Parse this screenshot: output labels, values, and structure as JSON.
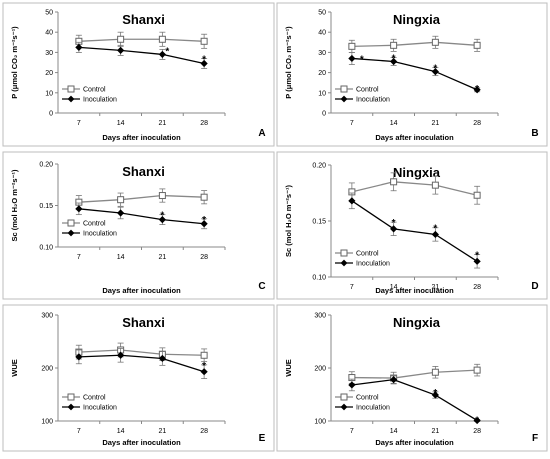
{
  "chart_data": [
    {
      "type": "line",
      "panel": "A",
      "title": "Shanxi",
      "xlabel": "Days after inoculation",
      "ylabel": "P (μmol CO₂ m⁻²s⁻¹)",
      "x": [
        7,
        14,
        21,
        28
      ],
      "ylim": [
        0,
        50
      ],
      "yticks": [
        "0",
        "10",
        "20",
        "30",
        "40",
        "50"
      ],
      "series": [
        {
          "name": "Control",
          "values": [
            35.5,
            36.5,
            36.5,
            35.5
          ],
          "errors": [
            3,
            3.5,
            3.5,
            3.5
          ]
        },
        {
          "name": "Inoculation",
          "values": [
            32.5,
            31,
            29,
            24.5
          ],
          "errors": [
            2.5,
            2.5,
            2.5,
            2.5
          ]
        }
      ],
      "significance": [
        {
          "x": 21,
          "mark": "*"
        },
        {
          "x": 28,
          "mark": "*"
        }
      ]
    },
    {
      "type": "line",
      "panel": "B",
      "title": "Ningxia",
      "xlabel": "Days after inoculation",
      "ylabel": "P (μmol CO₂ m⁻²s⁻¹)",
      "x": [
        7,
        14,
        21,
        28
      ],
      "ylim": [
        0,
        50
      ],
      "yticks": [
        "0",
        "10",
        "20",
        "30",
        "40",
        "50"
      ],
      "series": [
        {
          "name": "Control",
          "values": [
            33,
            33.5,
            35,
            33.5
          ],
          "errors": [
            3,
            3,
            3,
            3
          ]
        },
        {
          "name": "Inoculation",
          "values": [
            27,
            25.5,
            20.5,
            11.5
          ],
          "errors": [
            3,
            2,
            2,
            1
          ]
        }
      ],
      "significance": [
        {
          "x": 7,
          "mark": "*"
        },
        {
          "x": 14,
          "mark": "*"
        },
        {
          "x": 21,
          "mark": "*"
        },
        {
          "x": 28,
          "mark": "*"
        }
      ]
    },
    {
      "type": "line",
      "panel": "C",
      "title": "Shanxi",
      "xlabel": "Days after inoculation",
      "ylabel": "Sc (mol H₂O m⁻²s⁻¹)",
      "x": [
        7,
        14,
        21,
        28
      ],
      "ylim": [
        0.1,
        0.2
      ],
      "yticks": [
        "0.10",
        "0.15",
        "0.20"
      ],
      "series": [
        {
          "name": "Control",
          "values": [
            0.154,
            0.157,
            0.162,
            0.16
          ],
          "errors": [
            0.008,
            0.008,
            0.008,
            0.008
          ]
        },
        {
          "name": "Inoculation",
          "values": [
            0.146,
            0.141,
            0.133,
            0.128
          ],
          "errors": [
            0.007,
            0.007,
            0.006,
            0.006
          ]
        }
      ],
      "significance": [
        {
          "x": 21,
          "mark": "*"
        },
        {
          "x": 28,
          "mark": "*"
        }
      ]
    },
    {
      "type": "line",
      "panel": "D",
      "title": "Ningxia",
      "xlabel": "Days after inoculation",
      "ylabel": "Sc (mol H₂O m⁻²s⁻¹)",
      "x": [
        7,
        14,
        21,
        28
      ],
      "ylim": [
        0.1,
        0.2
      ],
      "yticks": [
        "0.10",
        "0.15",
        "0.20"
      ],
      "series": [
        {
          "name": "Control",
          "values": [
            0.176,
            0.185,
            0.182,
            0.173
          ],
          "errors": [
            0.008,
            0.008,
            0.008,
            0.008
          ]
        },
        {
          "name": "Inoculation",
          "values": [
            0.168,
            0.143,
            0.138,
            0.114
          ],
          "errors": [
            0.007,
            0.006,
            0.006,
            0.006
          ]
        }
      ],
      "significance": [
        {
          "x": 14,
          "mark": "*"
        },
        {
          "x": 21,
          "mark": "*"
        },
        {
          "x": 28,
          "mark": "*"
        }
      ]
    },
    {
      "type": "line",
      "panel": "E",
      "title": "Shanxi",
      "xlabel": "Days after inoculation",
      "ylabel": "WUE",
      "x": [
        7,
        14,
        21,
        28
      ],
      "ylim": [
        100,
        300
      ],
      "yticks": [
        "100",
        "200",
        "300"
      ],
      "series": [
        {
          "name": "Control",
          "values": [
            230,
            234,
            226,
            224
          ],
          "errors": [
            13,
            13,
            12,
            12
          ]
        },
        {
          "name": "Inoculation",
          "values": [
            221,
            224,
            218,
            193
          ],
          "errors": [
            13,
            13,
            13,
            13
          ]
        }
      ],
      "significance": [
        {
          "x": 28,
          "mark": "*"
        }
      ]
    },
    {
      "type": "line",
      "panel": "F",
      "title": "Ningxia",
      "xlabel": "Days after inoculation",
      "ylabel": "WUE",
      "x": [
        7,
        14,
        21,
        28
      ],
      "ylim": [
        100,
        300
      ],
      "yticks": [
        "100",
        "200",
        "300"
      ],
      "series": [
        {
          "name": "Control",
          "values": [
            182,
            181,
            192,
            196
          ],
          "errors": [
            11,
            11,
            11,
            11
          ]
        },
        {
          "name": "Inoculation",
          "values": [
            168,
            178,
            149,
            101
          ],
          "errors": [
            11,
            7,
            6,
            2
          ]
        }
      ],
      "significance": [
        {
          "x": 21,
          "mark": "*"
        },
        {
          "x": 28,
          "mark": "*"
        }
      ]
    }
  ],
  "colors": {
    "control_line": "#888888",
    "inoculation_line": "#000000",
    "panel_border": "#bdbdbd"
  },
  "markers": {
    "control": "open-square",
    "inoculation": "filled-diamond"
  },
  "legend_placement": "bottom-left"
}
